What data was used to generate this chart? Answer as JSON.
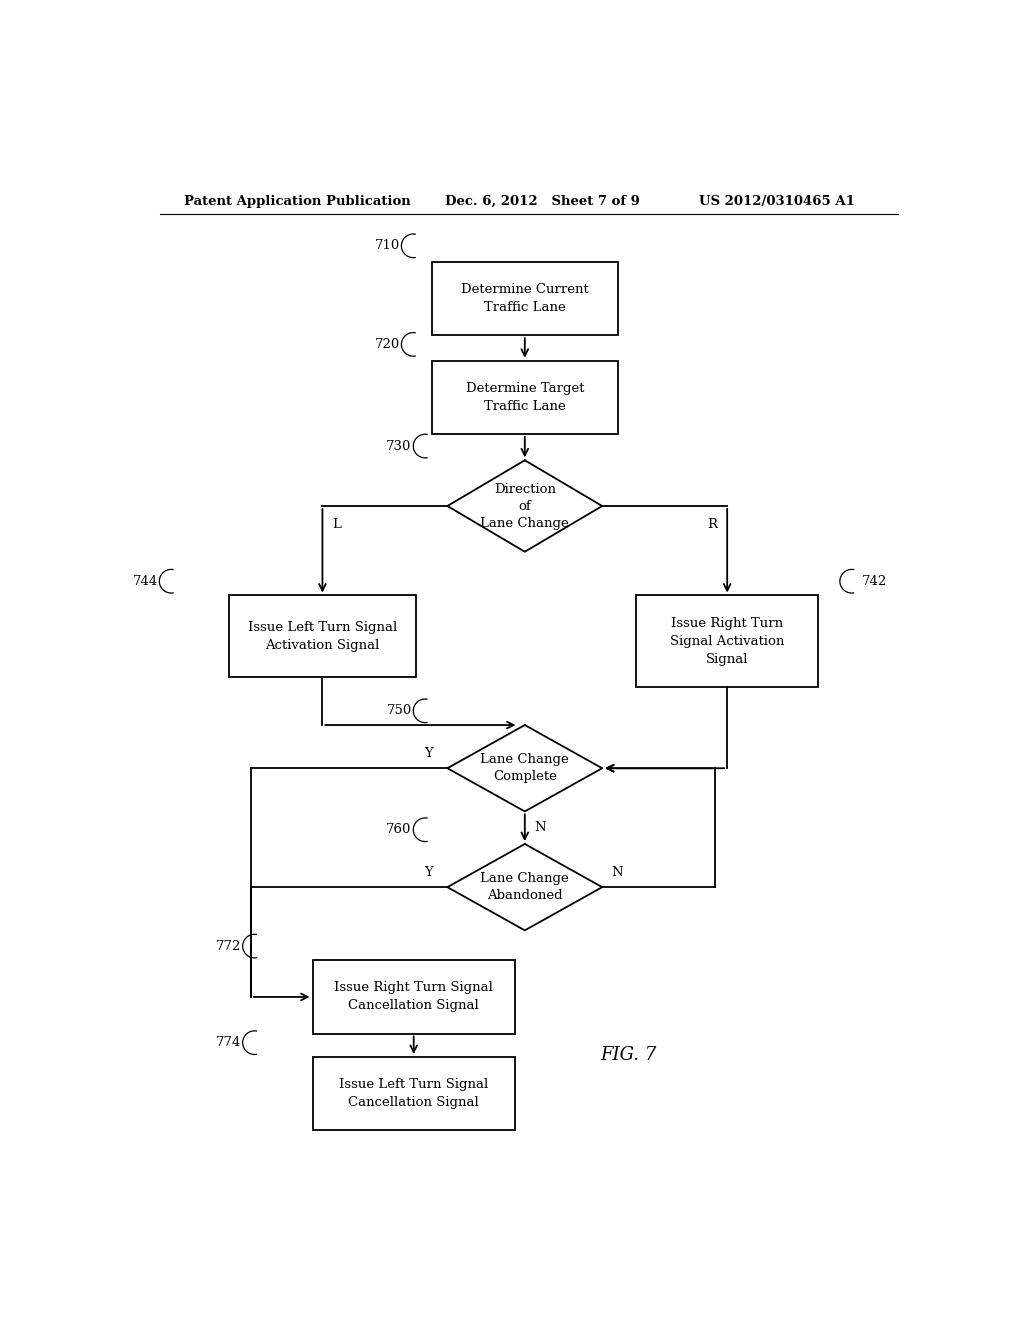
{
  "bg_color": "#ffffff",
  "header_left": "Patent Application Publication",
  "header_mid": "Dec. 6, 2012   Sheet 7 of 9",
  "header_right": "US 2012/0310465 A1",
  "fig_label": "FIG. 7",
  "box_710_label": "Determine Current\nTraffic Lane",
  "box_720_label": "Determine Target\nTraffic Lane",
  "dia_730_label": "Direction\nof\nLane Change",
  "box_744_label": "Issue Left Turn Signal\nActivation Signal",
  "box_742_label": "Issue Right Turn\nSignal Activation\nSignal",
  "dia_750_label": "Lane Change\nComplete",
  "dia_760_label": "Lane Change\nAbandoned",
  "box_772_label": "Issue Right Turn Signal\nCancellation Signal",
  "box_774_label": "Issue Left Turn Signal\nCancellation Signal",
  "lw": 1.3,
  "fontsize": 9.5,
  "header_fontsize": 9.5
}
